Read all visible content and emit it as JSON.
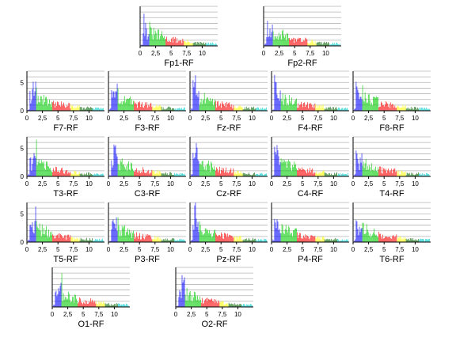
{
  "figure": {
    "background": "#ffffff",
    "band_colors": [
      "#0000ff",
      "#00cc00",
      "#ff0000",
      "#ffff00",
      "#006600",
      "#00cccc"
    ]
  },
  "chart_data": {
    "type": "bar",
    "xlim": [
      0,
      12.5
    ],
    "ylim": [
      0,
      7
    ],
    "grid": true,
    "x_ticks": [
      "0",
      "2,5",
      "5",
      "7,5",
      "10"
    ],
    "y_ticks": [
      "0",
      "5"
    ],
    "bands": [
      {
        "color": "#0000ff",
        "x_range": [
          0,
          1.5
        ]
      },
      {
        "color": "#00cc00",
        "x_range": [
          1.5,
          4
        ]
      },
      {
        "color": "#ff0000",
        "x_range": [
          4,
          7
        ]
      },
      {
        "color": "#ffff00",
        "x_range": [
          7,
          8.5
        ]
      },
      {
        "color": "#006600",
        "x_range": [
          8.5,
          10.5
        ]
      },
      {
        "color": "#00cccc",
        "x_range": [
          10.5,
          12.5
        ]
      }
    ],
    "panels": [
      {
        "name": "Fp1-RF",
        "y_tick_labels": false
      },
      {
        "name": "Fp2-RF",
        "y_tick_labels": false
      },
      {
        "name": "F7-RF",
        "y_tick_labels": true
      },
      {
        "name": "F3-RF",
        "y_tick_labels": false
      },
      {
        "name": "Fz-RF",
        "y_tick_labels": false
      },
      {
        "name": "F4-RF",
        "y_tick_labels": false
      },
      {
        "name": "F8-RF",
        "y_tick_labels": false
      },
      {
        "name": "T3-RF",
        "y_tick_labels": true
      },
      {
        "name": "C3-RF",
        "y_tick_labels": false
      },
      {
        "name": "Cz-RF",
        "y_tick_labels": false
      },
      {
        "name": "C4-RF",
        "y_tick_labels": false
      },
      {
        "name": "T4-RF",
        "y_tick_labels": false
      },
      {
        "name": "T5-RF",
        "y_tick_labels": true
      },
      {
        "name": "P3-RF",
        "y_tick_labels": false
      },
      {
        "name": "Pz-RF",
        "y_tick_labels": false
      },
      {
        "name": "P4-RF",
        "y_tick_labels": false
      },
      {
        "name": "T6-RF",
        "y_tick_labels": false
      },
      {
        "name": "O1-RF",
        "y_tick_labels": false
      },
      {
        "name": "O2-RF",
        "y_tick_labels": false
      }
    ]
  }
}
